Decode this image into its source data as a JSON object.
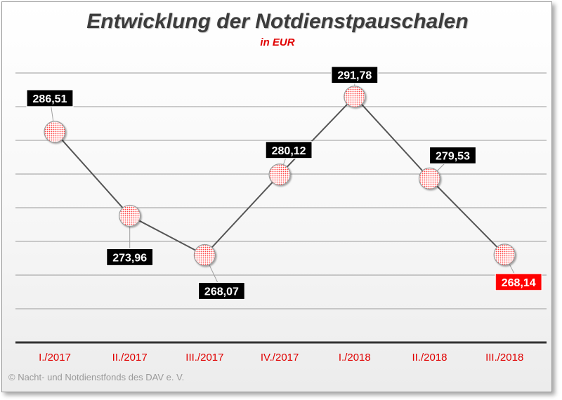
{
  "title": "Entwicklung der Notdienstpauschalen",
  "subtitle": "in EUR",
  "footer": "© Nacht- und Notdienstfonds  des DAV e. V.",
  "colors": {
    "label_bg": "#000000",
    "label_bg_highlight": "#ff0000",
    "category_text": "#e00000",
    "line": "#555555",
    "marker": "#ff5a5a"
  },
  "chart_data": {
    "type": "line",
    "categories": [
      "I./2017",
      "II./2017",
      "III./2017",
      "IV./2017",
      "I./2018",
      "II./2018",
      "III./2018"
    ],
    "values": [
      286.51,
      273.96,
      268.07,
      280.12,
      291.78,
      279.53,
      268.14
    ],
    "data_labels": [
      "286,51",
      "273,96",
      "268,07",
      "280,12",
      "291,78",
      "279,53",
      "268,14"
    ],
    "highlight_index": 6,
    "title": "Entwicklung der Notdienstpauschalen",
    "subtitle": "in EUR",
    "xlabel": "",
    "ylabel": "",
    "ylim": [
      255,
      297
    ],
    "grid": true
  }
}
